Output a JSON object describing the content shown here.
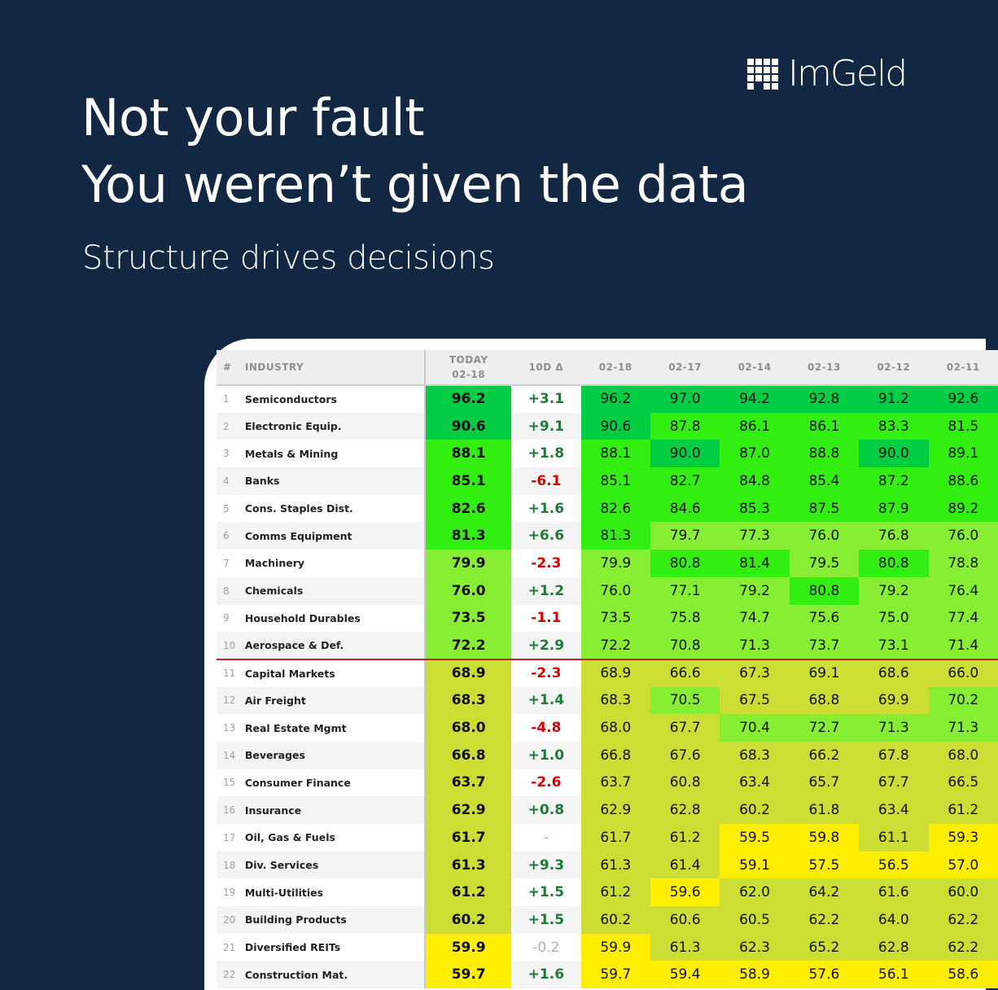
{
  "brand": {
    "name": "ImGeld",
    "logo_icon": "grid-logo-icon"
  },
  "headline": {
    "line1": "Not your fault",
    "line2": "You weren’t given the data"
  },
  "subtitle": "Structure drives decisions",
  "colors": {
    "background": "#122742",
    "scale": {
      "90+": "#00cc44",
      "80-90": "#33ee11",
      "70-80": "#88ee33",
      "60-70": "#ccdd33",
      "<60": "#ffee00"
    },
    "positive_delta": "#1f7a3a",
    "negative_delta": "#d40000",
    "cutoff_line": "#c42020"
  },
  "table": {
    "headers": {
      "num": "#",
      "industry": "INDUSTRY",
      "today_line1": "TODAY",
      "today_line2": "02-18",
      "delta": "10D Δ",
      "dates": [
        "02-18",
        "02-17",
        "02-14",
        "02-13",
        "02-12",
        "02-11"
      ]
    },
    "rows": [
      {
        "num": "1",
        "industry": "Semiconductors",
        "today": "96.2",
        "delta": "+3.1",
        "days": [
          "96.2",
          "97.0",
          "94.2",
          "92.8",
          "91.2",
          "92.6"
        ]
      },
      {
        "num": "2",
        "industry": "Electronic Equip.",
        "today": "90.6",
        "delta": "+9.1",
        "days": [
          "90.6",
          "87.8",
          "86.1",
          "86.1",
          "83.3",
          "81.5"
        ]
      },
      {
        "num": "3",
        "industry": "Metals & Mining",
        "today": "88.1",
        "delta": "+1.8",
        "days": [
          "88.1",
          "90.0",
          "87.0",
          "88.8",
          "90.0",
          "89.1"
        ]
      },
      {
        "num": "4",
        "industry": "Banks",
        "today": "85.1",
        "delta": "-6.1",
        "days": [
          "85.1",
          "82.7",
          "84.8",
          "85.4",
          "87.2",
          "88.6"
        ]
      },
      {
        "num": "5",
        "industry": "Cons. Staples Dist.",
        "today": "82.6",
        "delta": "+1.6",
        "days": [
          "82.6",
          "84.6",
          "85.3",
          "87.5",
          "87.9",
          "89.2"
        ]
      },
      {
        "num": "6",
        "industry": "Comms Equipment",
        "today": "81.3",
        "delta": "+6.6",
        "days": [
          "81.3",
          "79.7",
          "77.3",
          "76.0",
          "76.8",
          "76.0"
        ]
      },
      {
        "num": "7",
        "industry": "Machinery",
        "today": "79.9",
        "delta": "-2.3",
        "days": [
          "79.9",
          "80.8",
          "81.4",
          "79.5",
          "80.8",
          "78.8"
        ]
      },
      {
        "num": "8",
        "industry": "Chemicals",
        "today": "76.0",
        "delta": "+1.2",
        "days": [
          "76.0",
          "77.1",
          "79.2",
          "80.8",
          "79.2",
          "76.4"
        ]
      },
      {
        "num": "9",
        "industry": "Household Durables",
        "today": "73.5",
        "delta": "-1.1",
        "days": [
          "73.5",
          "75.8",
          "74.7",
          "75.6",
          "75.0",
          "77.4"
        ]
      },
      {
        "num": "10",
        "industry": "Aerospace & Def.",
        "today": "72.2",
        "delta": "+2.9",
        "days": [
          "72.2",
          "70.8",
          "71.3",
          "73.7",
          "73.1",
          "71.4"
        ]
      },
      {
        "num": "11",
        "industry": "Capital Markets",
        "today": "68.9",
        "delta": "-2.3",
        "days": [
          "68.9",
          "66.6",
          "67.3",
          "69.1",
          "68.6",
          "66.0"
        ]
      },
      {
        "num": "12",
        "industry": "Air Freight",
        "today": "68.3",
        "delta": "+1.4",
        "days": [
          "68.3",
          "70.5",
          "67.5",
          "68.8",
          "69.9",
          "70.2"
        ]
      },
      {
        "num": "13",
        "industry": "Real Estate Mgmt",
        "today": "68.0",
        "delta": "-4.8",
        "days": [
          "68.0",
          "67.7",
          "70.4",
          "72.7",
          "71.3",
          "71.3"
        ]
      },
      {
        "num": "14",
        "industry": "Beverages",
        "today": "66.8",
        "delta": "+1.0",
        "days": [
          "66.8",
          "67.6",
          "68.3",
          "66.2",
          "67.8",
          "68.0"
        ]
      },
      {
        "num": "15",
        "industry": "Consumer Finance",
        "today": "63.7",
        "delta": "-2.6",
        "days": [
          "63.7",
          "60.8",
          "63.4",
          "65.7",
          "67.7",
          "66.5"
        ]
      },
      {
        "num": "16",
        "industry": "Insurance",
        "today": "62.9",
        "delta": "+0.8",
        "days": [
          "62.9",
          "62.8",
          "60.2",
          "61.8",
          "63.4",
          "61.2"
        ]
      },
      {
        "num": "17",
        "industry": "Oil, Gas & Fuels",
        "today": "61.7",
        "delta": "-",
        "days": [
          "61.7",
          "61.2",
          "59.5",
          "59.8",
          "61.1",
          "59.3"
        ]
      },
      {
        "num": "18",
        "industry": "Div. Services",
        "today": "61.3",
        "delta": "+9.3",
        "days": [
          "61.3",
          "61.4",
          "59.1",
          "57.5",
          "56.5",
          "57.0"
        ]
      },
      {
        "num": "19",
        "industry": "Multi-Utilities",
        "today": "61.2",
        "delta": "+1.5",
        "days": [
          "61.2",
          "59.6",
          "62.0",
          "64.2",
          "61.6",
          "60.0"
        ]
      },
      {
        "num": "20",
        "industry": "Building Products",
        "today": "60.2",
        "delta": "+1.5",
        "days": [
          "60.2",
          "60.6",
          "60.5",
          "62.2",
          "64.0",
          "62.2"
        ]
      },
      {
        "num": "21",
        "industry": "Diversified REITs",
        "today": "59.9",
        "delta": "-0.2",
        "days": [
          "59.9",
          "61.3",
          "62.3",
          "65.2",
          "62.8",
          "62.2"
        ]
      },
      {
        "num": "22",
        "industry": "Construction Mat.",
        "today": "59.7",
        "delta": "+1.6",
        "days": [
          "59.7",
          "59.4",
          "58.9",
          "57.6",
          "56.1",
          "58.6"
        ]
      }
    ]
  }
}
